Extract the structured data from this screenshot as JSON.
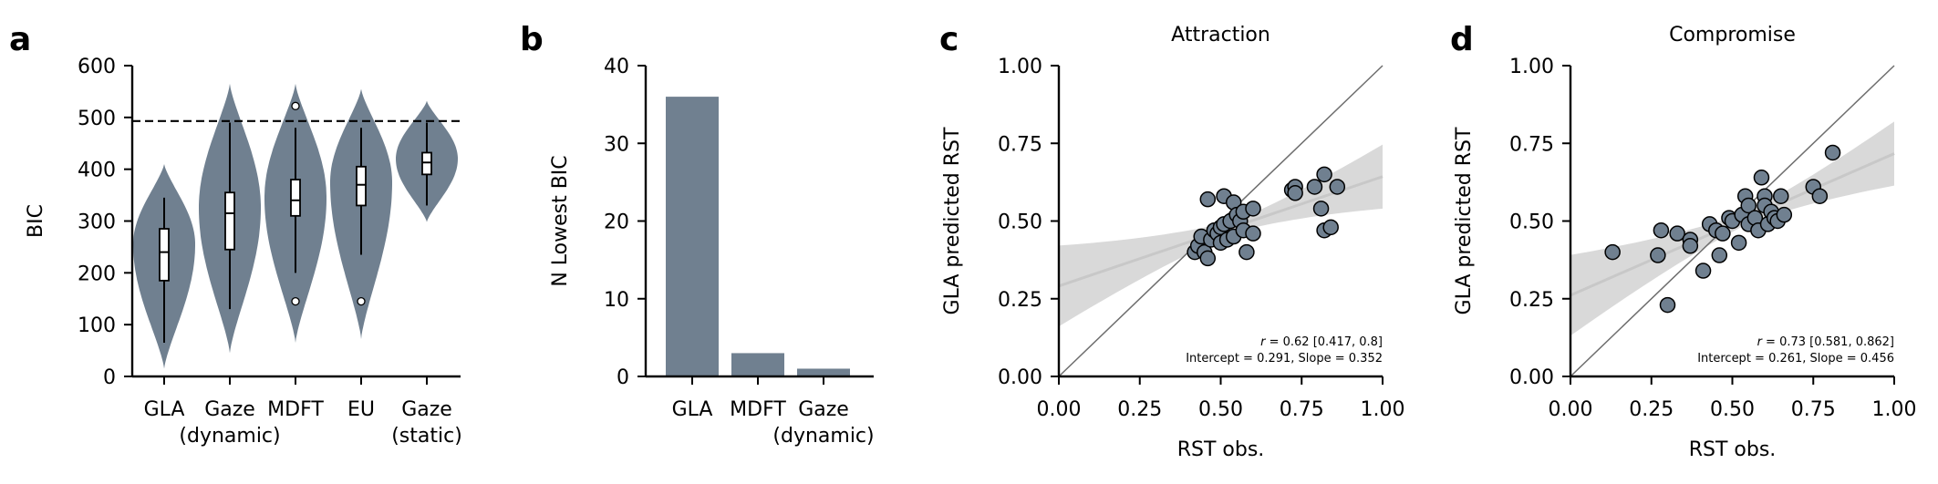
{
  "colors": {
    "fill": "#708090",
    "line": "#000000",
    "ci_band": "#d9d9d9",
    "reg_line": "#c8c8c8",
    "identity_line": "#6e6e6e",
    "background": "#ffffff"
  },
  "chart_data": [
    {
      "panel": "a",
      "type": "violin",
      "title": "",
      "xlabel": "",
      "ylabel": "BIC",
      "ylim": [
        0,
        600
      ],
      "yticks": [
        0,
        100,
        200,
        300,
        400,
        500,
        600
      ],
      "reference_line": {
        "y": 493,
        "style": "dashed"
      },
      "categories": [
        {
          "lines": [
            "GLA"
          ],
          "median": 240,
          "q1": 185,
          "q3": 285,
          "whisker_low": 65,
          "whisker_high": 345,
          "outliers": [],
          "density_range": [
            15,
            410
          ],
          "density_peak": 255
        },
        {
          "lines": [
            "Gaze",
            "(dynamic)"
          ],
          "median": 315,
          "q1": 245,
          "q3": 355,
          "whisker_low": 130,
          "whisker_high": 490,
          "outliers": [],
          "density_range": [
            45,
            565
          ],
          "density_peak": 325
        },
        {
          "lines": [
            "MDFT"
          ],
          "median": 340,
          "q1": 310,
          "q3": 380,
          "whisker_low": 200,
          "whisker_high": 480,
          "outliers": [
            145,
            522
          ],
          "density_range": [
            65,
            565
          ],
          "density_peak": 345
        },
        {
          "lines": [
            "EU"
          ],
          "median": 370,
          "q1": 330,
          "q3": 405,
          "whisker_low": 235,
          "whisker_high": 480,
          "outliers": [
            145
          ],
          "density_range": [
            72,
            555
          ],
          "density_peak": 375
        },
        {
          "lines": [
            "Gaze",
            "(static)"
          ],
          "median": 413,
          "q1": 390,
          "q3": 432,
          "whisker_low": 330,
          "whisker_high": 490,
          "outliers": [],
          "density_range": [
            298,
            532
          ],
          "density_peak": 420
        }
      ]
    },
    {
      "panel": "b",
      "type": "bar",
      "title": "",
      "xlabel": "",
      "ylabel": "N Lowest BIC",
      "ylim": [
        0,
        40
      ],
      "yticks": [
        0,
        10,
        20,
        30,
        40
      ],
      "categories": [
        {
          "lines": [
            "GLA"
          ]
        },
        {
          "lines": [
            "MDFT"
          ]
        },
        {
          "lines": [
            "Gaze",
            "(dynamic)"
          ]
        }
      ],
      "values": [
        36,
        3,
        1
      ]
    },
    {
      "panel": "c",
      "type": "scatter",
      "title": "Attraction",
      "xlabel": "RST obs.",
      "ylabel": "GLA predicted RST",
      "xlim": [
        0,
        1
      ],
      "ylim": [
        0,
        1
      ],
      "ticks": [
        "0.00",
        "0.25",
        "0.50",
        "0.75",
        "1.00"
      ],
      "regression": {
        "intercept": 0.291,
        "slope": 0.352
      },
      "annotation_r": "= 0.62 [0.417, 0.8]",
      "annotation_fit": "Intercept = 0.291, Slope = 0.352",
      "points": [
        [
          0.42,
          0.4
        ],
        [
          0.43,
          0.42
        ],
        [
          0.44,
          0.45
        ],
        [
          0.45,
          0.4
        ],
        [
          0.46,
          0.38
        ],
        [
          0.46,
          0.57
        ],
        [
          0.47,
          0.44
        ],
        [
          0.48,
          0.47
        ],
        [
          0.49,
          0.46
        ],
        [
          0.5,
          0.48
        ],
        [
          0.5,
          0.43
        ],
        [
          0.51,
          0.58
        ],
        [
          0.51,
          0.49
        ],
        [
          0.52,
          0.44
        ],
        [
          0.53,
          0.5
        ],
        [
          0.54,
          0.45
        ],
        [
          0.54,
          0.56
        ],
        [
          0.55,
          0.52
        ],
        [
          0.56,
          0.5
        ],
        [
          0.57,
          0.53
        ],
        [
          0.57,
          0.47
        ],
        [
          0.58,
          0.4
        ],
        [
          0.6,
          0.46
        ],
        [
          0.6,
          0.54
        ],
        [
          0.72,
          0.6
        ],
        [
          0.73,
          0.61
        ],
        [
          0.73,
          0.59
        ],
        [
          0.79,
          0.61
        ],
        [
          0.81,
          0.54
        ],
        [
          0.82,
          0.65
        ],
        [
          0.82,
          0.47
        ],
        [
          0.84,
          0.48
        ],
        [
          0.86,
          0.61
        ]
      ]
    },
    {
      "panel": "d",
      "type": "scatter",
      "title": "Compromise",
      "xlabel": "RST obs.",
      "ylabel": "GLA predicted RST",
      "xlim": [
        0,
        1
      ],
      "ylim": [
        0,
        1
      ],
      "ticks": [
        "0.00",
        "0.25",
        "0.50",
        "0.75",
        "1.00"
      ],
      "regression": {
        "intercept": 0.261,
        "slope": 0.456
      },
      "annotation_r": "= 0.73 [0.581, 0.862]",
      "annotation_fit": "Intercept = 0.261, Slope = 0.456",
      "points": [
        [
          0.13,
          0.4
        ],
        [
          0.27,
          0.39
        ],
        [
          0.28,
          0.47
        ],
        [
          0.3,
          0.23
        ],
        [
          0.33,
          0.46
        ],
        [
          0.37,
          0.44
        ],
        [
          0.37,
          0.42
        ],
        [
          0.41,
          0.34
        ],
        [
          0.43,
          0.49
        ],
        [
          0.45,
          0.47
        ],
        [
          0.46,
          0.39
        ],
        [
          0.47,
          0.46
        ],
        [
          0.49,
          0.51
        ],
        [
          0.5,
          0.5
        ],
        [
          0.52,
          0.43
        ],
        [
          0.53,
          0.52
        ],
        [
          0.54,
          0.58
        ],
        [
          0.55,
          0.49
        ],
        [
          0.55,
          0.55
        ],
        [
          0.57,
          0.51
        ],
        [
          0.58,
          0.47
        ],
        [
          0.59,
          0.64
        ],
        [
          0.6,
          0.58
        ],
        [
          0.6,
          0.55
        ],
        [
          0.61,
          0.49
        ],
        [
          0.62,
          0.53
        ],
        [
          0.63,
          0.51
        ],
        [
          0.64,
          0.5
        ],
        [
          0.65,
          0.58
        ],
        [
          0.66,
          0.52
        ],
        [
          0.75,
          0.61
        ],
        [
          0.77,
          0.58
        ],
        [
          0.81,
          0.72
        ]
      ]
    }
  ]
}
